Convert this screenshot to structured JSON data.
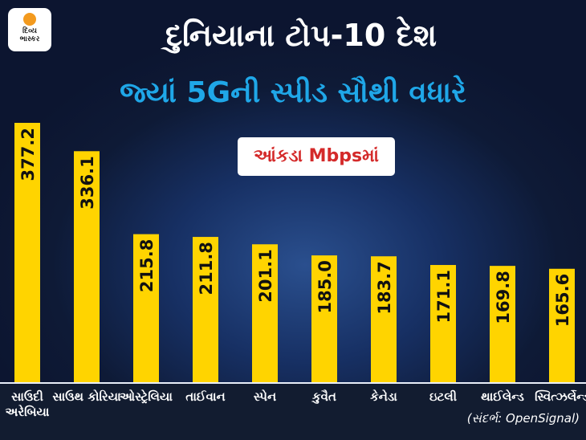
{
  "logo": {
    "line1": "દિવ્ય",
    "line2": "ભાસ્કર"
  },
  "chart_data": {
    "type": "bar",
    "title": "દુનિયાના ટોપ-10 દેશ",
    "subtitle": "જ્યાં 5Gની સ્પીડ સૌથી વધારે",
    "unit_label": "આંકડા Mbpsમાં",
    "categories": [
      "સાઉદી અરેબિયા",
      "સાઉથ કોરિયા",
      "ઓસ્ટ્રેલિયા",
      "તાઈવાન",
      "સ્પેન",
      "કુવૈત",
      "કેનેડા",
      "ઇટલી",
      "થાઈલેન્ડ",
      "સ્વિત્ઝર્લેન્ડ"
    ],
    "values": [
      377.2,
      336.1,
      215.8,
      211.8,
      201.1,
      185.0,
      183.7,
      171.1,
      169.8,
      165.6
    ],
    "value_labels": [
      "377.2",
      "336.1",
      "215.8",
      "211.8",
      "201.1",
      "185.0",
      "183.7",
      "171.1",
      "169.8",
      "165.6"
    ],
    "ylim": [
      0,
      377.2
    ],
    "grid": false,
    "bar_color": "#FFD400",
    "source": "(સંદર્ભ: OpenSignal)"
  }
}
